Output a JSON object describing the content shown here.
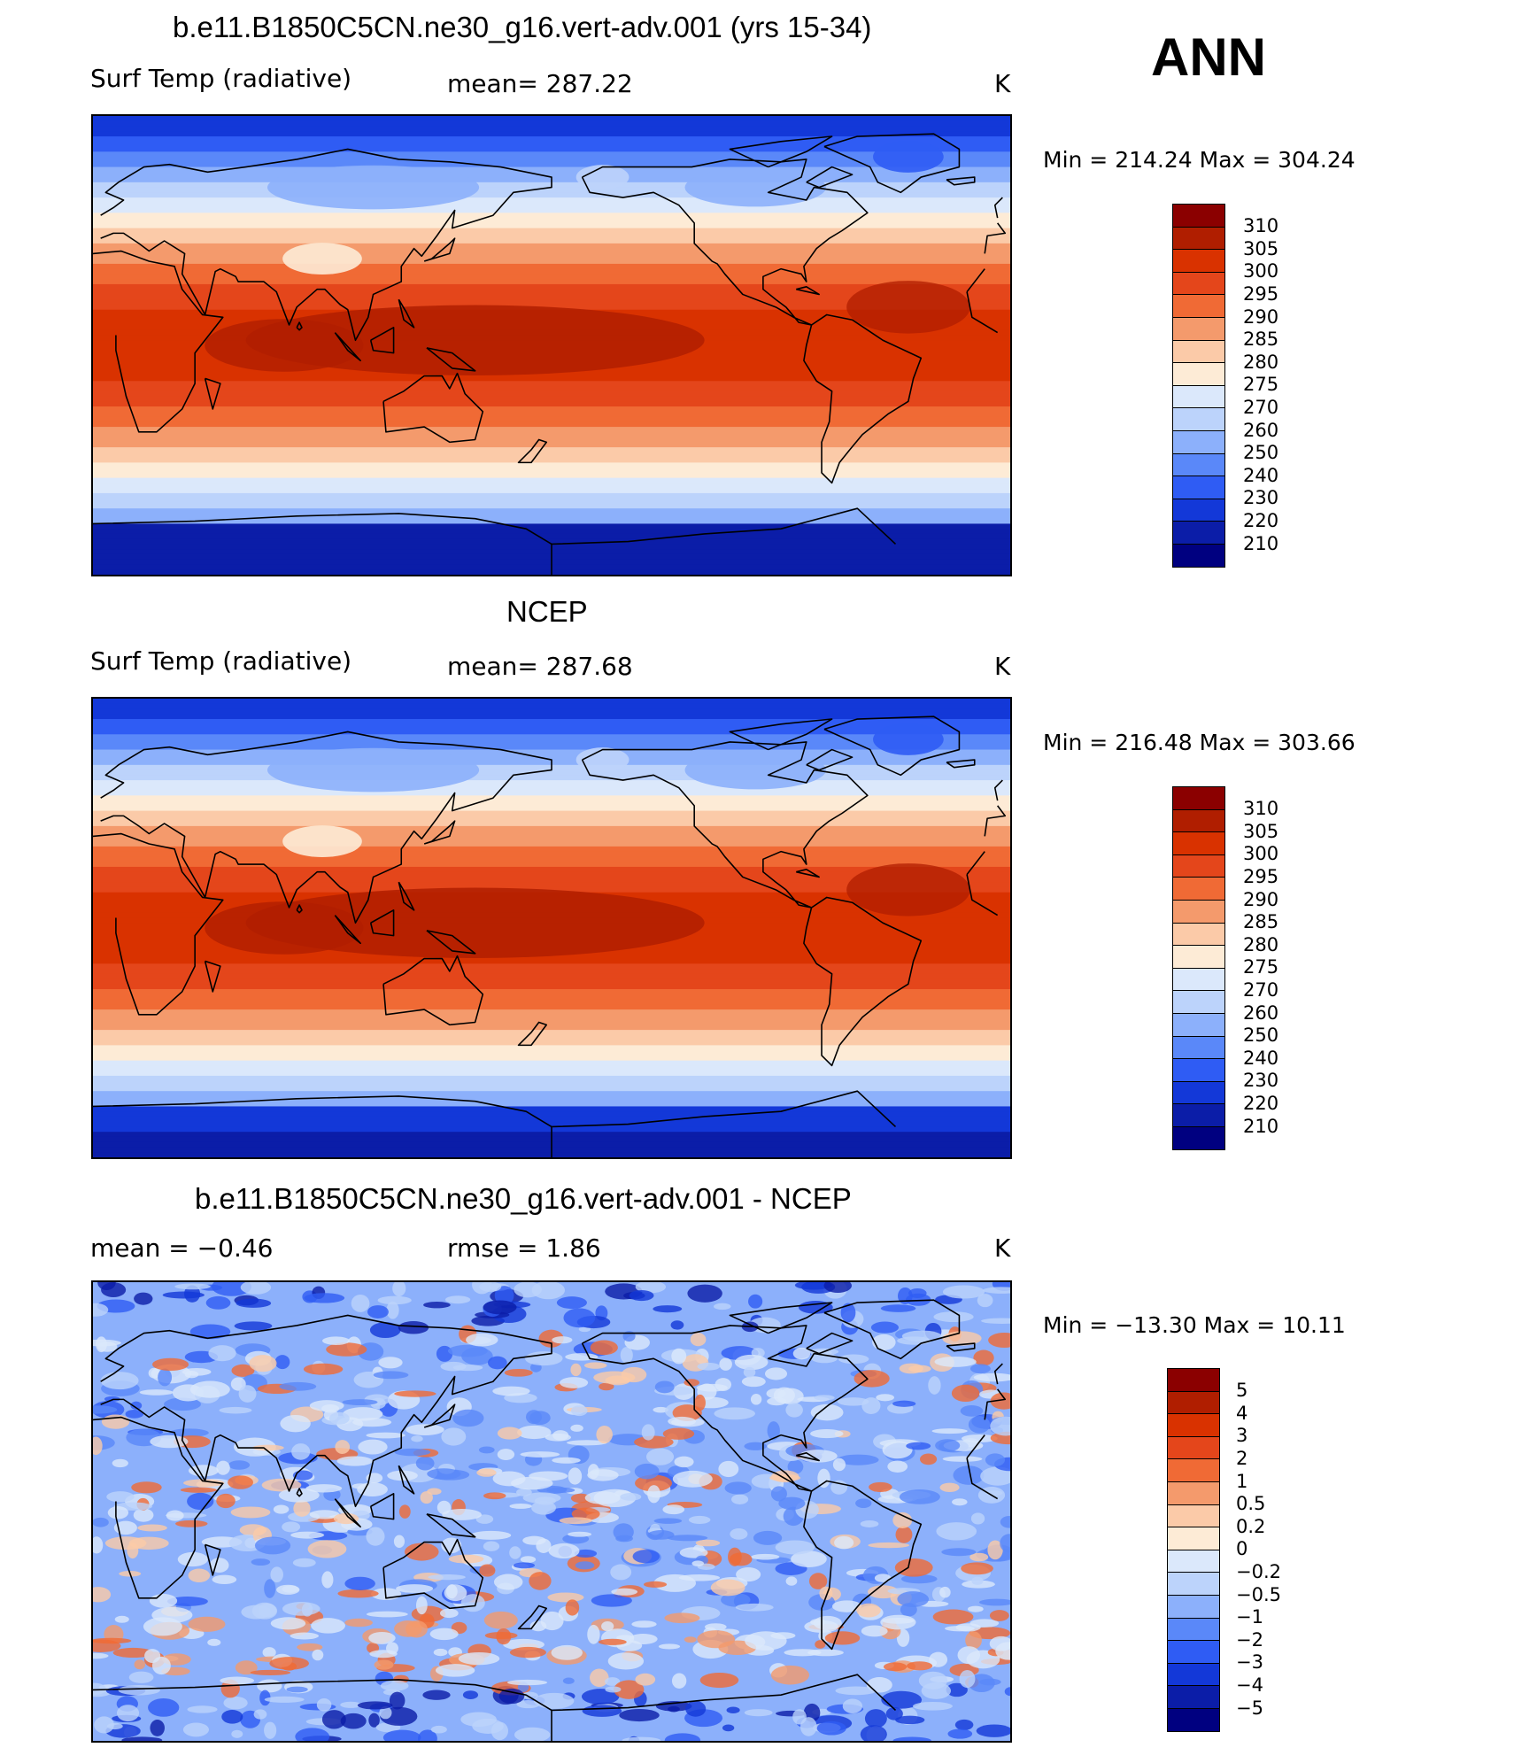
{
  "season": "ANN",
  "panels": [
    {
      "title": "b.e11.B1850C5CN.ne30_g16.vert-adv.001 (yrs 15-34)",
      "left_label": "Surf Temp (radiative)",
      "center_label": "mean= 287.22",
      "units": "K",
      "minmax": "Min = 214.24 Max = 304.24",
      "colorbar_labels": [
        "310",
        "305",
        "300",
        "295",
        "290",
        "285",
        "280",
        "275",
        "270",
        "260",
        "250",
        "240",
        "230",
        "220",
        "210"
      ],
      "colorbar_colors": [
        "#8b0000",
        "#b01e00",
        "#d93200",
        "#e4461b",
        "#f06a35",
        "#f49a6c",
        "#fbcaa8",
        "#fdebd6",
        "#dbe8fb",
        "#bcd3fb",
        "#8cb0fb",
        "#5a88f9",
        "#2f5cf4",
        "#1338d8",
        "#0b1da8",
        "#000080"
      ],
      "style": "model"
    },
    {
      "title": "NCEP",
      "left_label": "Surf Temp (radiative)",
      "center_label": "mean= 287.68",
      "units": "K",
      "minmax": "Min = 216.48 Max = 303.66",
      "colorbar_labels": [
        "310",
        "305",
        "300",
        "295",
        "290",
        "285",
        "280",
        "275",
        "270",
        "260",
        "250",
        "240",
        "230",
        "220",
        "210"
      ],
      "colorbar_colors": [
        "#8b0000",
        "#b01e00",
        "#d93200",
        "#e4461b",
        "#f06a35",
        "#f49a6c",
        "#fbcaa8",
        "#fdebd6",
        "#dbe8fb",
        "#bcd3fb",
        "#8cb0fb",
        "#5a88f9",
        "#2f5cf4",
        "#1338d8",
        "#0b1da8",
        "#000080"
      ],
      "style": "obs"
    },
    {
      "title": "b.e11.B1850C5CN.ne30_g16.vert-adv.001 - NCEP",
      "left_label": "mean =    −0.46",
      "center_label": "rmse =     1.86",
      "units": "K",
      "minmax": "Min = −13.30 Max =    10.11",
      "colorbar_labels": [
        "5",
        "4",
        "3",
        "2",
        "1",
        "0.5",
        "0.2",
        "0",
        "−0.2",
        "−0.5",
        "−1",
        "−2",
        "−3",
        "−4",
        "−5"
      ],
      "colorbar_colors": [
        "#8b0000",
        "#b01e00",
        "#d93200",
        "#e4461b",
        "#f06a35",
        "#f49a6c",
        "#fbcaa8",
        "#fdebd6",
        "#dbe8fb",
        "#bcd3fb",
        "#8cb0fb",
        "#5a88f9",
        "#2f5cf4",
        "#1338d8",
        "#0b1da8",
        "#000080"
      ],
      "style": "diff"
    }
  ]
}
